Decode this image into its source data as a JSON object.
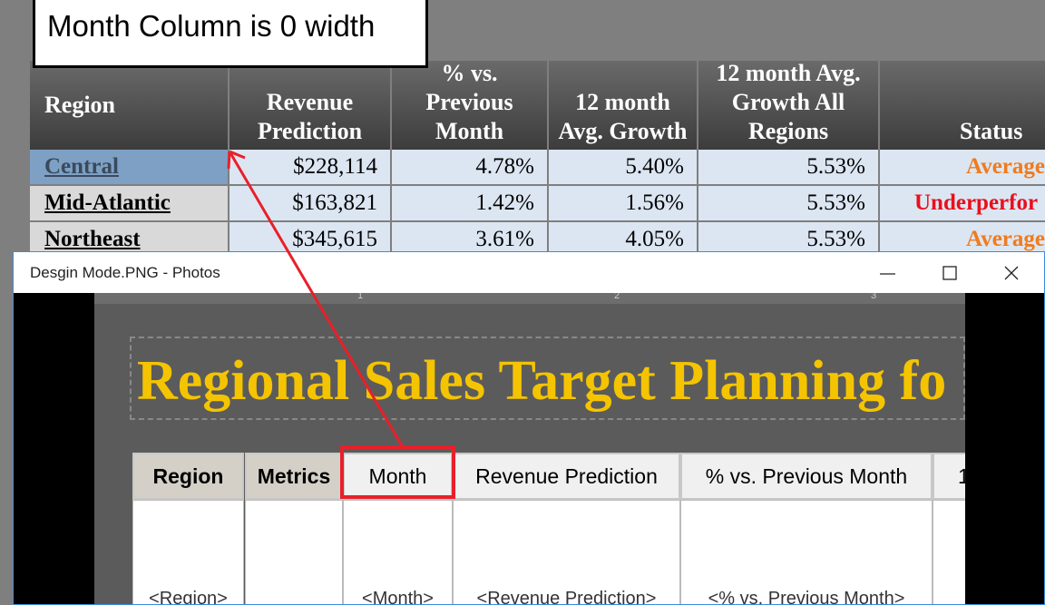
{
  "annotation": "Month Column is 0 width",
  "report": {
    "headers": [
      "Region",
      "Revenue Prediction",
      "% vs. Previous Month",
      "12 month Avg. Growth",
      "12 month Avg. Growth All Regions",
      "Status"
    ],
    "rows": [
      [
        "Central",
        "$228,114",
        "4.78%",
        "5.40%",
        "5.53%",
        "Average"
      ],
      [
        "Mid-Atlantic",
        "$163,821",
        "1.42%",
        "1.56%",
        "5.53%",
        "Underperfor"
      ],
      [
        "Northeast",
        "$345,615",
        "3.61%",
        "4.05%",
        "5.53%",
        "Average"
      ]
    ]
  },
  "window": {
    "title": "Desgin Mode.PNG - Photos",
    "ruler": [
      "1",
      "2",
      "3"
    ],
    "design": {
      "title": "Regional Sales Target Planning fo",
      "headers": [
        "Region",
        "Metrics",
        "Month",
        "Revenue Prediction",
        "% vs. Previous Month",
        "1"
      ],
      "placeholders": [
        "<Region>",
        "<Month>",
        "<Revenue Prediction>",
        "<% vs. Previous Month>"
      ]
    }
  }
}
